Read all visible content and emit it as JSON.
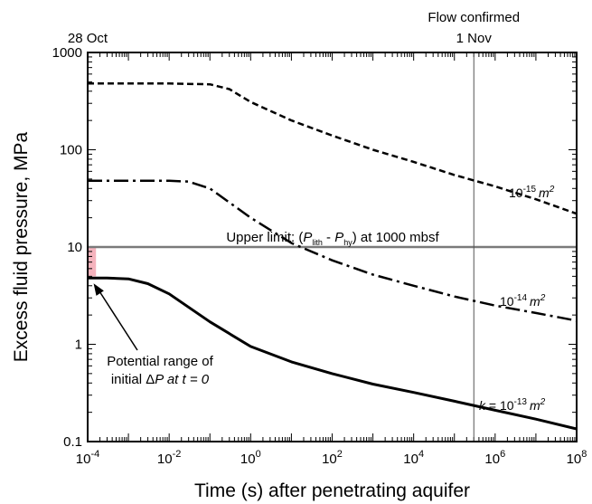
{
  "chart_data": {
    "type": "line",
    "xlabel": "Time (s) after penetrating aquifer",
    "ylabel": "Excess fluid pressure, MPa",
    "x_scale": "log",
    "y_scale": "log",
    "xlim": [
      0.0001,
      100000000
    ],
    "ylim": [
      0.1,
      1000
    ],
    "x_tick_labels": [
      "10-4",
      "10-2",
      "100",
      "102",
      "104",
      "106",
      "108"
    ],
    "y_tick_labels": [
      "0.1",
      "1",
      "10",
      "100",
      "1000"
    ],
    "top_labels": [
      {
        "text": "28 Oct",
        "x": 0.0001
      },
      {
        "text": "Flow confirmed",
        "x": 300000
      },
      {
        "text": "1 Nov",
        "x": 300000
      }
    ],
    "vertical_line": {
      "x": 300000
    },
    "upper_limit": {
      "y": 10,
      "label": "Upper limit: (P_lith - P_hy) at 1000 mbsf",
      "label_parts": [
        "Upper limit: (",
        "P",
        "lith",
        " - ",
        "P",
        "hy",
        ") at 1000 mbsf"
      ]
    },
    "shaded_range": {
      "x_from": 0.0001,
      "x_to": 0.00016,
      "y_from": 5,
      "y_to": 10,
      "color": "#f3a6b1"
    },
    "series": [
      {
        "name": "10-15 m2",
        "style": "dashed",
        "label_parts": [
          "10",
          "-15",
          "m",
          "2"
        ],
        "x": [
          0.0001,
          0.001,
          0.01,
          0.1,
          0.3,
          1,
          10,
          100,
          1000,
          10000,
          100000,
          1000000,
          10000000,
          100000000
        ],
        "y": [
          480,
          480,
          480,
          470,
          420,
          310,
          200,
          140,
          100,
          75,
          55,
          42,
          31,
          22
        ]
      },
      {
        "name": "10-14 m2",
        "style": "dashdot",
        "label_parts": [
          "10",
          "-14",
          "m",
          "2"
        ],
        "x": [
          0.0001,
          0.001,
          0.01,
          0.03,
          0.1,
          1,
          10,
          100,
          1000,
          10000,
          100000,
          1000000,
          10000000,
          100000000
        ],
        "y": [
          48,
          48,
          48,
          47,
          40,
          20,
          11,
          7.3,
          5.2,
          4.0,
          3.1,
          2.5,
          2.1,
          1.75
        ]
      },
      {
        "name": "k = 10-13 m2",
        "style": "solid",
        "label_parts": [
          "k",
          " = 10",
          "-13",
          "m",
          "2"
        ],
        "x": [
          0.0001,
          0.0003,
          0.001,
          0.003,
          0.01,
          0.1,
          1,
          10,
          100,
          1000,
          10000,
          100000,
          1000000,
          10000000,
          100000000
        ],
        "y": [
          4.8,
          4.8,
          4.7,
          4.2,
          3.3,
          1.7,
          0.95,
          0.66,
          0.5,
          0.39,
          0.32,
          0.26,
          0.21,
          0.17,
          0.135
        ]
      }
    ],
    "annotation": {
      "lines": [
        "Potential range of",
        "initial ΔP at t = 0"
      ],
      "line2_parts": [
        "initial Δ",
        "P",
        " at ",
        "t",
        " = 0"
      ],
      "arrow_target": {
        "x": 0.00012,
        "y": 4.8
      }
    }
  }
}
